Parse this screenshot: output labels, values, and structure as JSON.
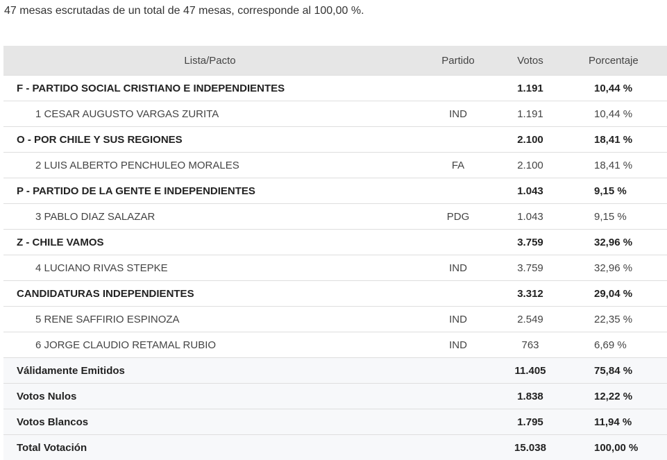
{
  "summary": "47 mesas escrutadas de un total de 47 mesas, corresponde al 100,00 %.",
  "headers": {
    "lista": "Lista/Pacto",
    "partido": "Partido",
    "votos": "Votos",
    "porcentaje": "Porcentaje"
  },
  "rows": [
    {
      "type": "group",
      "name": "F - PARTIDO SOCIAL CRISTIANO E INDEPENDIENTES",
      "partido": "",
      "votos": "1.191",
      "pct": "10,44 %"
    },
    {
      "type": "cand",
      "name": "1 CESAR AUGUSTO VARGAS ZURITA",
      "partido": "IND",
      "votos": "1.191",
      "pct": "10,44 %"
    },
    {
      "type": "group",
      "name": "O - POR CHILE Y SUS REGIONES",
      "partido": "",
      "votos": "2.100",
      "pct": "18,41 %"
    },
    {
      "type": "cand",
      "name": "2 LUIS ALBERTO PENCHULEO MORALES",
      "partido": "FA",
      "votos": "2.100",
      "pct": "18,41 %"
    },
    {
      "type": "group",
      "name": "P - PARTIDO DE LA GENTE E INDEPENDIENTES",
      "partido": "",
      "votos": "1.043",
      "pct": "9,15 %"
    },
    {
      "type": "cand",
      "name": "3 PABLO DIAZ SALAZAR",
      "partido": "PDG",
      "votos": "1.043",
      "pct": "9,15 %"
    },
    {
      "type": "group",
      "name": "Z - CHILE VAMOS",
      "partido": "",
      "votos": "3.759",
      "pct": "32,96 %"
    },
    {
      "type": "cand",
      "name": "4 LUCIANO RIVAS STEPKE",
      "partido": "IND",
      "votos": "3.759",
      "pct": "32,96 %"
    },
    {
      "type": "group",
      "name": "CANDIDATURAS INDEPENDIENTES",
      "partido": "",
      "votos": "3.312",
      "pct": "29,04 %"
    },
    {
      "type": "cand",
      "name": "5 RENE SAFFIRIO ESPINOZA",
      "partido": "IND",
      "votos": "2.549",
      "pct": "22,35 %"
    },
    {
      "type": "cand",
      "name": "6 JORGE CLAUDIO RETAMAL RUBIO",
      "partido": "IND",
      "votos": "763",
      "pct": "6,69 %"
    },
    {
      "type": "tot",
      "name": "Válidamente Emitidos",
      "partido": "",
      "votos": "11.405",
      "pct": "75,84 %"
    },
    {
      "type": "tot",
      "name": "Votos Nulos",
      "partido": "",
      "votos": "1.838",
      "pct": "12,22 %"
    },
    {
      "type": "tot",
      "name": "Votos Blancos",
      "partido": "",
      "votos": "1.795",
      "pct": "11,94 %"
    },
    {
      "type": "tot",
      "name": "Total Votación",
      "partido": "",
      "votos": "15.038",
      "pct": "100,00 %"
    }
  ]
}
